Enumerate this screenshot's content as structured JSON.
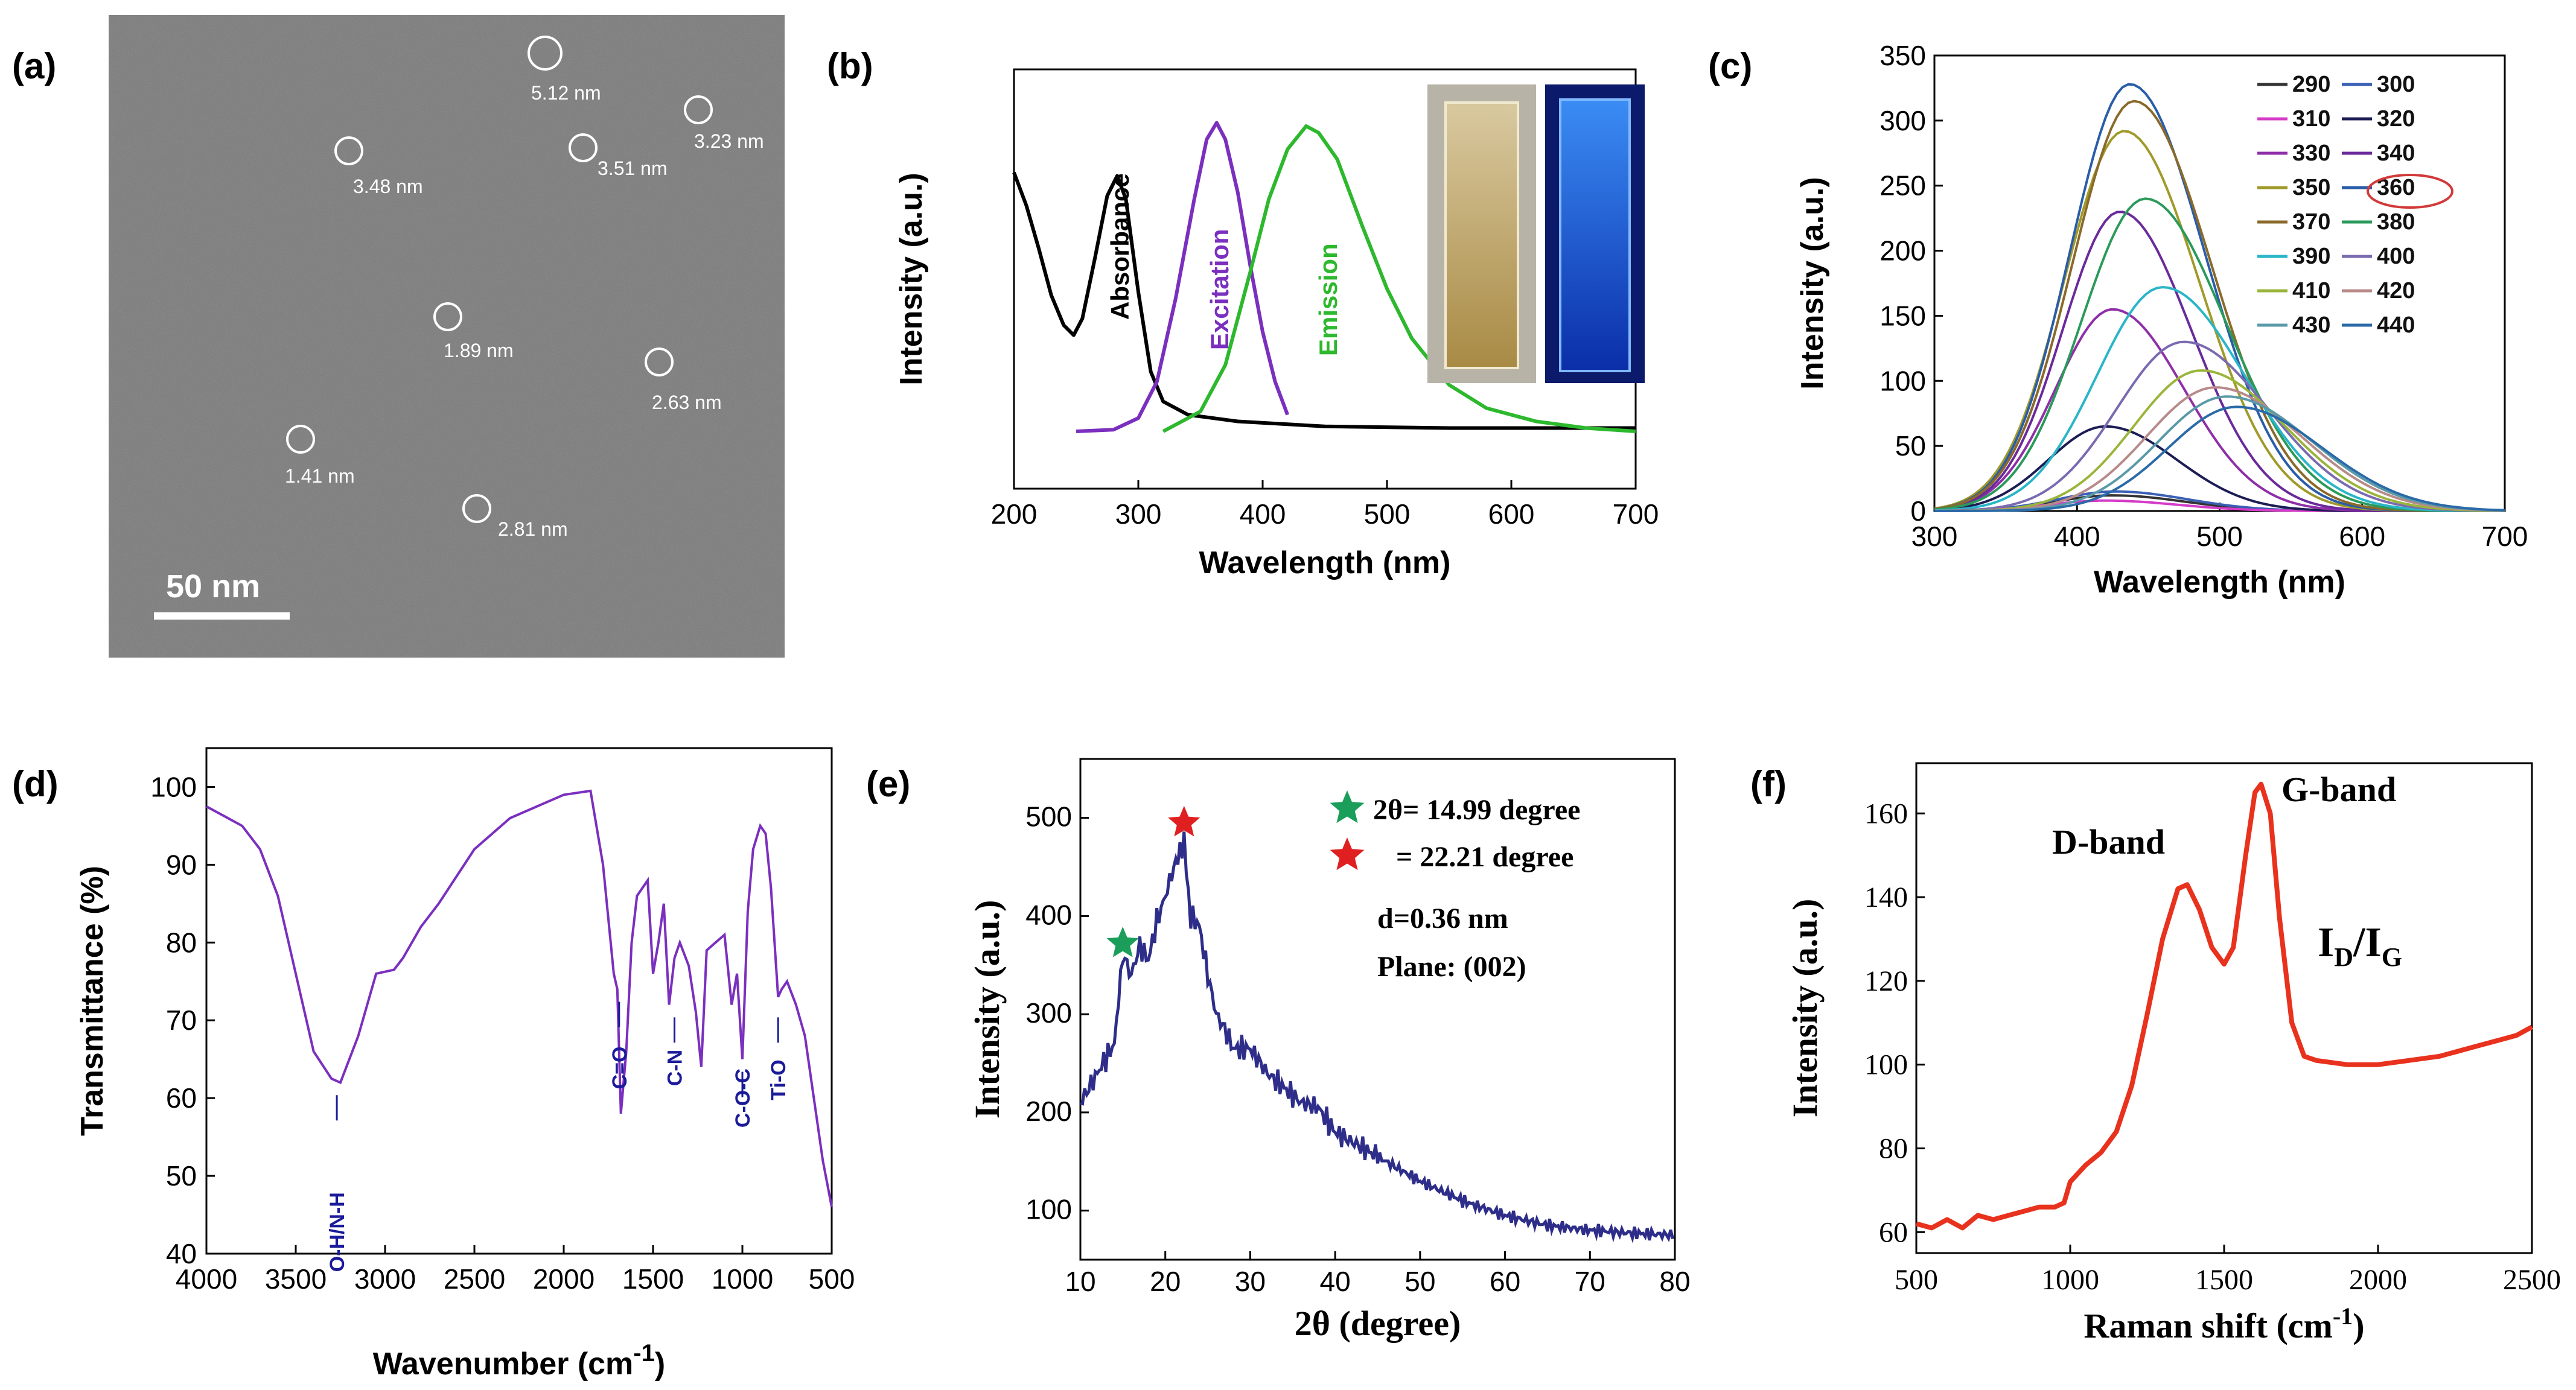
{
  "panels": [
    "(a)",
    "(b)",
    "(c)",
    "(d)",
    "(e)",
    "(f)"
  ],
  "panel_a": {
    "scale_bar": "50 nm",
    "particles": [
      "5.12 nm",
      "3.23 nm",
      "3.48 nm",
      "3.51 nm",
      "1.89 nm",
      "2.63 nm",
      "1.41 nm",
      "2.81 nm"
    ]
  },
  "chart_data": [
    {
      "id": "b",
      "type": "line",
      "xlabel": "Wavelength (nm)",
      "ylabel": "Intensity (a.u.)",
      "xlim": [
        200,
        700
      ],
      "xticks": [
        200,
        300,
        400,
        500,
        600,
        700
      ],
      "ylim": [
        0,
        1
      ],
      "series": [
        {
          "name": "Absorbance",
          "color": "#000000",
          "x": [
            200,
            210,
            220,
            230,
            240,
            248,
            255,
            265,
            275,
            283,
            290,
            300,
            310,
            320,
            340,
            380,
            450,
            550,
            700
          ],
          "y": [
            0.78,
            0.68,
            0.55,
            0.41,
            0.32,
            0.29,
            0.34,
            0.52,
            0.71,
            0.77,
            0.7,
            0.42,
            0.18,
            0.09,
            0.05,
            0.03,
            0.015,
            0.01,
            0.01
          ]
        },
        {
          "name": "Excitation",
          "color": "#7b2fbe",
          "x": [
            250,
            280,
            300,
            315,
            330,
            345,
            355,
            363,
            370,
            380,
            390,
            400,
            410,
            420
          ],
          "y": [
            0.0,
            0.005,
            0.04,
            0.15,
            0.4,
            0.7,
            0.88,
            0.93,
            0.88,
            0.72,
            0.5,
            0.3,
            0.15,
            0.05
          ]
        },
        {
          "name": "Emission",
          "color": "#2db82d",
          "x": [
            320,
            350,
            370,
            390,
            405,
            420,
            435,
            445,
            460,
            480,
            500,
            520,
            550,
            580,
            620,
            660,
            700
          ],
          "y": [
            0.0,
            0.06,
            0.2,
            0.48,
            0.7,
            0.85,
            0.92,
            0.9,
            0.82,
            0.62,
            0.43,
            0.28,
            0.14,
            0.07,
            0.03,
            0.01,
            0.0
          ]
        }
      ]
    },
    {
      "id": "c",
      "type": "line",
      "xlabel": "Wavelength (nm)",
      "ylabel": "Intensity (a.u.)",
      "xlim": [
        300,
        700
      ],
      "ylim": [
        0,
        350
      ],
      "xticks": [
        300,
        400,
        500,
        600,
        700
      ],
      "yticks": [
        0,
        50,
        100,
        150,
        200,
        250,
        300,
        350
      ],
      "highlight": "360",
      "series": [
        {
          "name": "290",
          "color": "#333333",
          "peak": 12,
          "center": 425,
          "width": 40
        },
        {
          "name": "300",
          "color": "#3a5fb5",
          "peak": 15,
          "center": 427,
          "width": 40
        },
        {
          "name": "310",
          "color": "#d43cc8",
          "peak": 8,
          "center": 420,
          "width": 40
        },
        {
          "name": "320",
          "color": "#1d1d55",
          "peak": 65,
          "center": 420,
          "width": 40
        },
        {
          "name": "330",
          "color": "#8e2fa8",
          "peak": 155,
          "center": 425,
          "width": 40
        },
        {
          "name": "340",
          "color": "#6a2a9a",
          "peak": 230,
          "center": 430,
          "width": 40
        },
        {
          "name": "350",
          "color": "#a09a2a",
          "peak": 292,
          "center": 433,
          "width": 42
        },
        {
          "name": "360",
          "color": "#2a5da8",
          "peak": 328,
          "center": 437,
          "width": 42
        },
        {
          "name": "370",
          "color": "#8a6a2a",
          "peak": 315,
          "center": 440,
          "width": 43
        },
        {
          "name": "380",
          "color": "#2a9a5a",
          "peak": 240,
          "center": 448,
          "width": 45
        },
        {
          "name": "390",
          "color": "#2ab5c8",
          "peak": 172,
          "center": 460,
          "width": 46
        },
        {
          "name": "400",
          "color": "#7a6ab0",
          "peak": 130,
          "center": 475,
          "width": 47
        },
        {
          "name": "410",
          "color": "#9ab53a",
          "peak": 108,
          "center": 487,
          "width": 47
        },
        {
          "name": "420",
          "color": "#b88a8a",
          "peak": 95,
          "center": 497,
          "width": 48
        },
        {
          "name": "430",
          "color": "#5a9aa8",
          "peak": 88,
          "center": 505,
          "width": 48
        },
        {
          "name": "440",
          "color": "#2a6aa8",
          "peak": 80,
          "center": 512,
          "width": 48
        }
      ]
    },
    {
      "id": "d",
      "type": "line",
      "xlabel": "Wavenumber (cm-1)",
      "ylabel": "Transmittance (%)",
      "xlim": [
        4000,
        500
      ],
      "ylim": [
        40,
        105
      ],
      "xticks": [
        4000,
        3500,
        3000,
        2500,
        2000,
        1500,
        1000,
        500
      ],
      "yticks": [
        40,
        50,
        60,
        70,
        80,
        90,
        100
      ],
      "color": "#7b2fbe",
      "x": [
        4000,
        3800,
        3700,
        3600,
        3500,
        3400,
        3300,
        3250,
        3150,
        3050,
        2950,
        2900,
        2800,
        2700,
        2500,
        2300,
        2000,
        1850,
        1780,
        1720,
        1700,
        1680,
        1650,
        1620,
        1590,
        1560,
        1530,
        1500,
        1470,
        1440,
        1410,
        1380,
        1350,
        1300,
        1260,
        1230,
        1200,
        1150,
        1100,
        1060,
        1030,
        1000,
        970,
        940,
        900,
        870,
        840,
        800,
        780,
        750,
        700,
        650,
        600,
        550,
        500
      ],
      "y": [
        97.5,
        95,
        92,
        86,
        76,
        66,
        62.5,
        62,
        68,
        76,
        76.5,
        78,
        82,
        85,
        92,
        96,
        99,
        99.5,
        90,
        76,
        74,
        58,
        66,
        80,
        86,
        87,
        88,
        76,
        80,
        85,
        72,
        78,
        80,
        77,
        71,
        64,
        79,
        80,
        81,
        72,
        76,
        65,
        84,
        92,
        95,
        94,
        87,
        73,
        74,
        75,
        72,
        68,
        60,
        52,
        46
      ],
      "annotations": [
        "O-H/N-H",
        "C=O",
        "C-N",
        "C-O-C",
        "Ti-O"
      ]
    },
    {
      "id": "e",
      "type": "line",
      "xlabel": "2θ (degree)",
      "ylabel": "Intensity (a.u.)",
      "xlim": [
        10,
        80
      ],
      "ylim": [
        50,
        560
      ],
      "xticks": [
        10,
        20,
        30,
        40,
        50,
        60,
        70,
        80
      ],
      "yticks": [
        100,
        200,
        300,
        400,
        500
      ],
      "color": "#2e2e8a",
      "x": [
        10,
        12,
        14,
        14.99,
        16,
        17,
        18,
        19,
        20,
        21,
        22.21,
        23,
        24,
        25,
        26,
        27,
        28,
        30,
        32,
        34,
        36,
        38,
        40,
        42,
        45,
        48,
        50,
        55,
        60,
        65,
        70,
        75,
        80
      ],
      "y": [
        210,
        240,
        270,
        360,
        340,
        370,
        355,
        395,
        420,
        450,
        475,
        400,
        390,
        340,
        300,
        285,
        265,
        265,
        240,
        225,
        210,
        205,
        180,
        170,
        155,
        140,
        130,
        110,
        95,
        85,
        80,
        77,
        75
      ],
      "legend": [
        "2θ= 14.99 degree",
        "= 22.21 degree"
      ],
      "star_colors": [
        "#1a9e5a",
        "#e02020"
      ],
      "annotations": [
        "d=0.36 nm",
        "Plane: (002)"
      ]
    },
    {
      "id": "f",
      "type": "line",
      "xlabel": "Raman shift (cm-1)",
      "ylabel": "Intensity (a.u.)",
      "xlim": [
        500,
        2500
      ],
      "ylim": [
        55,
        172
      ],
      "xticks": [
        500,
        1000,
        1500,
        2000,
        2500
      ],
      "yticks": [
        60,
        80,
        100,
        120,
        140,
        160
      ],
      "color": "#e8321e",
      "x": [
        500,
        550,
        600,
        650,
        700,
        750,
        800,
        850,
        900,
        950,
        980,
        1000,
        1050,
        1100,
        1150,
        1200,
        1250,
        1300,
        1350,
        1380,
        1420,
        1460,
        1500,
        1530,
        1570,
        1600,
        1620,
        1650,
        1680,
        1720,
        1760,
        1800,
        1900,
        2000,
        2100,
        2200,
        2300,
        2400,
        2450,
        2500
      ],
      "y": [
        62,
        61,
        63,
        61,
        64,
        63,
        64,
        65,
        66,
        66,
        67,
        72,
        76,
        79,
        84,
        95,
        112,
        130,
        142,
        143,
        137,
        128,
        124,
        128,
        150,
        165,
        167,
        160,
        135,
        110,
        102,
        101,
        100,
        100,
        101,
        102,
        104,
        106,
        107,
        109
      ],
      "annotations": [
        "D-band",
        "G-band",
        "I",
        "D",
        "/I",
        "G"
      ]
    }
  ]
}
